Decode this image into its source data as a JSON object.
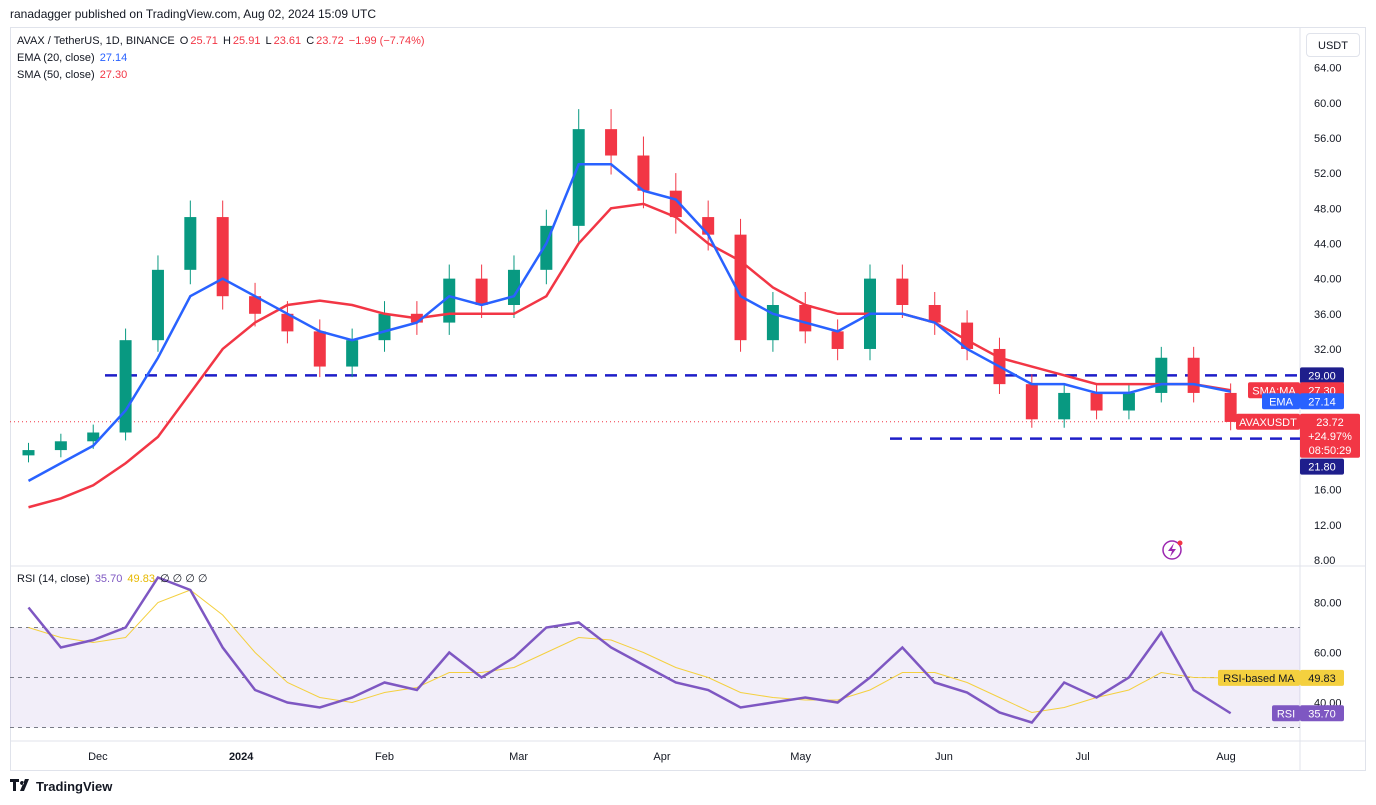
{
  "attribution": "ranadagger published on TradingView.com, Aug 02, 2024 15:09 UTC",
  "header": {
    "symbol": "AVAX / TetherUS, 1D, BINANCE",
    "o_label": "O",
    "o": "25.71",
    "h_label": "H",
    "h": "25.91",
    "l_label": "L",
    "l": "23.61",
    "c_label": "C",
    "c": "23.72",
    "change": "−1.99 (−7.74%)",
    "ema_label": "EMA (20, close)",
    "ema_value": "27.14",
    "sma_label": "SMA (50, close)",
    "sma_value": "27.30"
  },
  "currency_button": "USDT",
  "rsi_header": {
    "label": "RSI (14, close)",
    "rsi": "35.70",
    "ma": "49.83",
    "zeros": "∅ ∅ ∅ ∅"
  },
  "price_axis_ticks": [
    "64.00",
    "60.00",
    "56.00",
    "52.00",
    "48.00",
    "44.00",
    "40.00",
    "36.00",
    "32.00",
    "16.00",
    "12.00",
    "8.00"
  ],
  "rsi_axis_ticks": [
    "80.00",
    "60.00",
    "40.00"
  ],
  "time_axis_ticks": [
    "Dec",
    "2024",
    "Feb",
    "Mar",
    "Apr",
    "May",
    "Jun",
    "Jul",
    "Aug"
  ],
  "price_badges": {
    "resistance": "29.00",
    "sma_label": "SMA:MA",
    "sma": "27.30",
    "ema_label": "EMA",
    "ema": "27.14",
    "symbol_label": "AVAXUSDT",
    "last": "23.72",
    "pct": "+24.97%",
    "countdown": "08:50:29",
    "support": "21.80"
  },
  "rsi_badges": {
    "ma_label": "RSI-based MA",
    "ma": "49.83",
    "rsi_label": "RSI",
    "rsi": "35.70"
  },
  "footer": {
    "brand": "TradingView"
  },
  "colors": {
    "up": "#089981",
    "down": "#f23645",
    "ema": "#2962ff",
    "sma": "#f23645",
    "rsi": "#7e57c2",
    "rsi_ma": "#f4d03f",
    "lines": "#1e1ec8"
  },
  "chart_data": [
    {
      "type": "candlestick",
      "title": "AVAX / TetherUS, 1D, BINANCE",
      "x": [
        "2023-11-16",
        "2023-11-23",
        "2023-11-30",
        "2023-12-07",
        "2023-12-14",
        "2023-12-21",
        "2023-12-28",
        "2024-01-04",
        "2024-01-11",
        "2024-01-18",
        "2024-01-25",
        "2024-02-01",
        "2024-02-08",
        "2024-02-15",
        "2024-02-22",
        "2024-02-29",
        "2024-03-07",
        "2024-03-14",
        "2024-03-21",
        "2024-03-28",
        "2024-04-04",
        "2024-04-11",
        "2024-04-18",
        "2024-04-25",
        "2024-05-02",
        "2024-05-09",
        "2024-05-16",
        "2024-05-23",
        "2024-05-30",
        "2024-06-06",
        "2024-06-13",
        "2024-06-20",
        "2024-06-27",
        "2024-07-04",
        "2024-07-11",
        "2024-07-18",
        "2024-07-25",
        "2024-08-02"
      ],
      "close": [
        20.5,
        21.5,
        22.5,
        33,
        41,
        47,
        38,
        36,
        34,
        30,
        33,
        36,
        35,
        40,
        37,
        41,
        46,
        57,
        54,
        50,
        47,
        45,
        33,
        37,
        34,
        32,
        40,
        37,
        35,
        32,
        28,
        24,
        27,
        25,
        27,
        31,
        27,
        23.7
      ],
      "series": [
        {
          "name": "EMA (20, close)",
          "values": [
            17,
            19,
            21,
            25,
            31,
            38,
            40,
            38,
            36,
            34,
            33,
            34,
            35,
            38,
            37,
            38,
            44,
            53,
            53,
            50,
            49,
            45,
            38,
            36,
            35,
            34,
            36,
            36,
            35,
            32,
            30,
            28,
            28,
            27,
            27,
            28,
            28,
            27.14
          ]
        },
        {
          "name": "SMA (50, close)",
          "values": [
            14,
            15,
            16.5,
            19,
            22,
            27,
            32,
            35,
            37,
            37.5,
            37,
            36,
            35.5,
            36,
            36,
            36,
            38,
            44,
            48,
            48.5,
            47,
            44,
            42,
            39,
            37,
            36,
            36,
            36,
            35,
            33,
            31,
            30,
            29,
            28,
            28,
            28,
            28,
            27.3
          ]
        }
      ],
      "horizontal_lines": [
        {
          "value": 29.0
        },
        {
          "value": 21.8
        }
      ],
      "ylim": [
        8,
        66
      ]
    },
    {
      "type": "line",
      "title": "RSI (14, close)",
      "x": [
        "2023-11-16",
        "2023-11-23",
        "2023-11-30",
        "2023-12-07",
        "2023-12-14",
        "2023-12-21",
        "2023-12-28",
        "2024-01-04",
        "2024-01-11",
        "2024-01-18",
        "2024-01-25",
        "2024-02-01",
        "2024-02-08",
        "2024-02-15",
        "2024-02-22",
        "2024-02-29",
        "2024-03-07",
        "2024-03-14",
        "2024-03-21",
        "2024-03-28",
        "2024-04-04",
        "2024-04-11",
        "2024-04-18",
        "2024-04-25",
        "2024-05-02",
        "2024-05-09",
        "2024-05-16",
        "2024-05-23",
        "2024-05-30",
        "2024-06-06",
        "2024-06-13",
        "2024-06-20",
        "2024-06-27",
        "2024-07-04",
        "2024-07-11",
        "2024-07-18",
        "2024-07-25",
        "2024-08-02"
      ],
      "series": [
        {
          "name": "RSI",
          "values": [
            78,
            62,
            65,
            70,
            90,
            85,
            62,
            45,
            40,
            38,
            42,
            48,
            45,
            60,
            50,
            58,
            70,
            72,
            62,
            55,
            48,
            45,
            38,
            40,
            42,
            40,
            50,
            62,
            48,
            44,
            36,
            32,
            48,
            42,
            50,
            68,
            45,
            35.7
          ]
        },
        {
          "name": "RSI-based MA",
          "values": [
            70,
            66,
            64,
            66,
            80,
            85,
            75,
            60,
            48,
            42,
            40,
            44,
            46,
            52,
            52,
            54,
            60,
            66,
            65,
            60,
            54,
            50,
            44,
            42,
            41,
            41,
            45,
            52,
            52,
            48,
            42,
            36,
            38,
            42,
            45,
            52,
            50,
            49.83
          ]
        }
      ],
      "horizontal_lines": [
        {
          "value": 70
        },
        {
          "value": 50
        },
        {
          "value": 30
        }
      ],
      "ylim": [
        25,
        95
      ]
    }
  ]
}
